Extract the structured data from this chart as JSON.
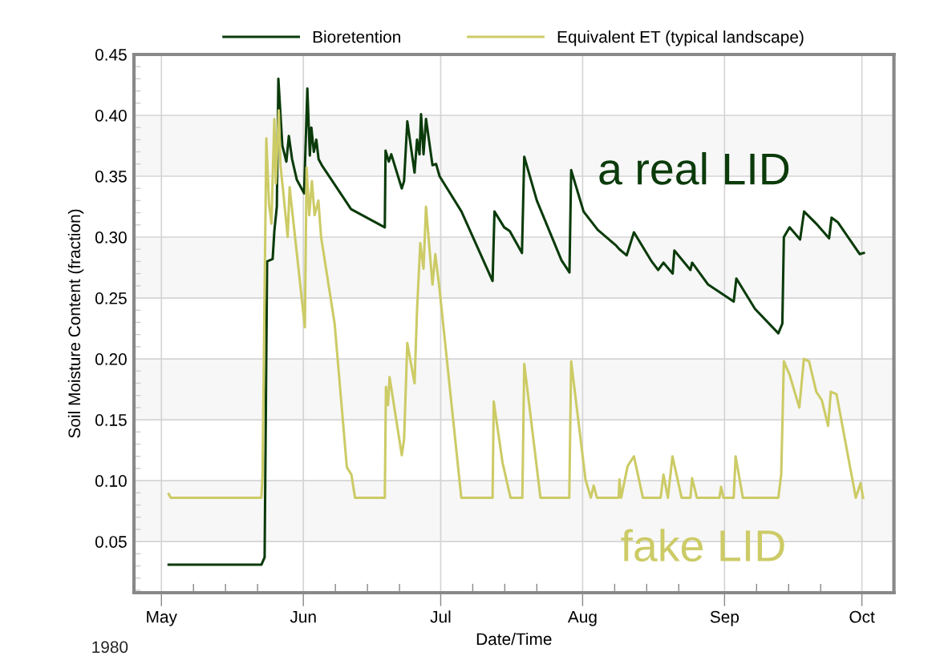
{
  "chart_data": {
    "type": "line",
    "xlabel": "Date/Time",
    "ylabel": "Soil Moisture Content (fraction)",
    "annotations": [
      "a real LID",
      "fake LID",
      "1980"
    ],
    "legend": "top",
    "grid": true,
    "line_style": "solid",
    "marker": "none",
    "xlim": [
      "1980-04-25",
      "1980-10-08"
    ],
    "ylim": [
      0.008,
      0.45
    ],
    "xticks": [
      {
        "value": "1980-05-01",
        "label": "May"
      },
      {
        "value": "1980-05-08",
        "label": null
      },
      {
        "value": "1980-05-15",
        "label": null
      },
      {
        "value": "1980-05-22",
        "label": null
      },
      {
        "value": "1980-06-01",
        "label": "Jun"
      },
      {
        "value": "1980-06-08",
        "label": null
      },
      {
        "value": "1980-06-15",
        "label": null
      },
      {
        "value": "1980-06-22",
        "label": null
      },
      {
        "value": "1980-07-01",
        "label": "Jul"
      },
      {
        "value": "1980-07-08",
        "label": null
      },
      {
        "value": "1980-07-15",
        "label": null
      },
      {
        "value": "1980-07-22",
        "label": null
      },
      {
        "value": "1980-08-01",
        "label": "Aug"
      },
      {
        "value": "1980-08-08",
        "label": null
      },
      {
        "value": "1980-08-15",
        "label": null
      },
      {
        "value": "1980-08-22",
        "label": null
      },
      {
        "value": "1980-09-01",
        "label": "Sep"
      },
      {
        "value": "1980-09-08",
        "label": null
      },
      {
        "value": "1980-09-15",
        "label": null
      },
      {
        "value": "1980-09-22",
        "label": null
      },
      {
        "value": "1980-10-01",
        "label": "Oct"
      }
    ],
    "yticks": [
      {
        "value": 0.01,
        "label": null
      },
      {
        "value": 0.02,
        "label": null
      },
      {
        "value": 0.03,
        "label": null
      },
      {
        "value": 0.04,
        "label": null
      },
      {
        "value": 0.05,
        "label": "0.05"
      },
      {
        "value": 0.06,
        "label": null
      },
      {
        "value": 0.07,
        "label": null
      },
      {
        "value": 0.08,
        "label": null
      },
      {
        "value": 0.09,
        "label": null
      },
      {
        "value": 0.1,
        "label": "0.10"
      },
      {
        "value": 0.11,
        "label": null
      },
      {
        "value": 0.12,
        "label": null
      },
      {
        "value": 0.13,
        "label": null
      },
      {
        "value": 0.14,
        "label": null
      },
      {
        "value": 0.15,
        "label": "0.15"
      },
      {
        "value": 0.16,
        "label": null
      },
      {
        "value": 0.17,
        "label": null
      },
      {
        "value": 0.18,
        "label": null
      },
      {
        "value": 0.19,
        "label": null
      },
      {
        "value": 0.2,
        "label": "0.20"
      },
      {
        "value": 0.21,
        "label": null
      },
      {
        "value": 0.22,
        "label": null
      },
      {
        "value": 0.23,
        "label": null
      },
      {
        "value": 0.24,
        "label": null
      },
      {
        "value": 0.25,
        "label": "0.25"
      },
      {
        "value": 0.26,
        "label": null
      },
      {
        "value": 0.27,
        "label": null
      },
      {
        "value": 0.28,
        "label": null
      },
      {
        "value": 0.29,
        "label": null
      },
      {
        "value": 0.3,
        "label": "0.30"
      },
      {
        "value": 0.31,
        "label": null
      },
      {
        "value": 0.32,
        "label": null
      },
      {
        "value": 0.33,
        "label": null
      },
      {
        "value": 0.34,
        "label": null
      },
      {
        "value": 0.35,
        "label": "0.35"
      },
      {
        "value": 0.36,
        "label": null
      },
      {
        "value": 0.37,
        "label": null
      },
      {
        "value": 0.38,
        "label": null
      },
      {
        "value": 0.39,
        "label": null
      },
      {
        "value": 0.4,
        "label": "0.40"
      },
      {
        "value": 0.41,
        "label": null
      },
      {
        "value": 0.42,
        "label": null
      },
      {
        "value": 0.43,
        "label": null
      },
      {
        "value": 0.44,
        "label": null
      },
      {
        "value": 0.45,
        "label": "0.45"
      }
    ],
    "bands": [
      {
        "axis": "y",
        "from": 0.05,
        "to": 0.1,
        "label": null,
        "color": "#f7f7f7"
      },
      {
        "axis": "y",
        "from": 0.15,
        "to": 0.2,
        "label": null,
        "color": "#f7f7f7"
      },
      {
        "axis": "y",
        "from": 0.25,
        "to": 0.3,
        "label": null,
        "color": "#f7f7f7"
      },
      {
        "axis": "y",
        "from": 0.35,
        "to": 0.4,
        "label": null,
        "color": "#f7f7f7"
      }
    ],
    "series": [
      {
        "name": "Bioretention",
        "color": "#0b3b0b",
        "x": [
          "1980-05-02T14:00",
          "1980-05-22T20:00",
          "1980-05-23T13:00",
          "1980-05-24T02:00",
          "1980-05-25T07:00",
          "1980-05-25T16:00",
          "1980-05-26T05:00",
          "1980-05-26T13:00",
          "1980-05-27T10:00",
          "1980-05-28T07:00",
          "1980-05-28T20:00",
          "1980-05-29T13:00",
          "1980-05-30T14:00",
          "1980-06-01T04:00",
          "1980-06-01T21:00",
          "1980-06-02T10:00",
          "1980-06-02T18:00",
          "1980-06-03T07:00",
          "1980-06-03T20:00",
          "1980-06-04T08:00",
          "1980-06-05T01:00",
          "1980-06-11T10:00",
          "1980-06-18T19:00",
          "1980-06-18T23:00",
          "1980-06-19T16:00",
          "1980-06-20T05:00",
          "1980-06-22T12:00",
          "1980-06-23T00:00",
          "1980-06-23T17:00",
          "1980-06-25T07:00",
          "1980-06-25T20:00",
          "1980-06-26T09:00",
          "1980-06-26T17:00",
          "1980-06-27T06:00",
          "1980-06-27T19:00",
          "1980-06-29T05:00",
          "1980-06-30T00:00",
          "1980-06-30T18:00",
          "1980-07-05T13:00",
          "1980-07-12T08:00",
          "1980-07-12T18:00",
          "1980-07-14T21:00",
          "1980-07-16T02:00",
          "1980-07-18T18:00",
          "1980-07-19T06:00",
          "1980-07-22T00:00",
          "1980-07-27T09:00",
          "1980-07-29T03:00",
          "1980-07-29T12:00",
          "1980-08-01T05:00",
          "1980-08-04T07:00",
          "1980-08-08T08:00",
          "1980-08-09T01:00",
          "1980-08-10T15:00",
          "1980-08-12T05:00",
          "1980-08-16T02:00",
          "1980-08-17T12:00",
          "1980-08-18T16:00",
          "1980-08-20T16:00",
          "1980-08-21T01:00",
          "1980-08-24T13:00",
          "1980-08-24T22:00",
          "1980-08-28T10:00",
          "1980-08-31T06:00",
          "1980-09-03T00:00",
          "1980-09-03T14:00",
          "1980-09-07T16:00",
          "1980-09-12T18:00",
          "1980-09-13T15:00",
          "1980-09-13T23:00",
          "1980-09-15T05:00",
          "1980-09-17T12:00",
          "1980-09-18T09:00",
          "1980-09-21T01:00",
          "1980-09-23T20:00",
          "1980-09-24T09:00",
          "1980-09-25T19:00",
          "1980-09-30T13:00",
          "1980-10-01T10:00"
        ],
        "values": [
          0.031,
          0.031,
          0.037,
          0.28,
          0.282,
          0.305,
          0.325,
          0.43,
          0.375,
          0.362,
          0.383,
          0.364,
          0.347,
          0.336,
          0.422,
          0.367,
          0.39,
          0.37,
          0.38,
          0.364,
          0.359,
          0.323,
          0.308,
          0.371,
          0.362,
          0.368,
          0.34,
          0.346,
          0.395,
          0.353,
          0.38,
          0.368,
          0.401,
          0.368,
          0.397,
          0.359,
          0.36,
          0.35,
          0.321,
          0.264,
          0.321,
          0.308,
          0.305,
          0.287,
          0.366,
          0.33,
          0.281,
          0.271,
          0.355,
          0.321,
          0.306,
          0.293,
          0.29,
          0.285,
          0.304,
          0.28,
          0.273,
          0.279,
          0.27,
          0.289,
          0.273,
          0.279,
          0.261,
          0.254,
          0.247,
          0.266,
          0.241,
          0.221,
          0.229,
          0.3,
          0.308,
          0.298,
          0.321,
          0.311,
          0.299,
          0.316,
          0.312,
          0.286,
          0.287
        ]
      },
      {
        "name": "Equivalent ET (typical landscape)",
        "color": "#cccb66",
        "x": [
          "1980-05-02T14:00",
          "1980-05-03T01:00",
          "1980-05-22T20:00",
          "1980-05-23T02:00",
          "1980-05-23T22:00",
          "1980-05-24T12:00",
          "1980-05-25T01:00",
          "1980-05-25T05:00",
          "1980-05-25T16:00",
          "1980-05-26T00:00",
          "1980-05-26T15:00",
          "1980-05-27T00:00",
          "1980-05-27T14:00",
          "1980-05-28T14:00",
          "1980-05-29T00:00",
          "1980-06-01T08:00",
          "1980-06-01T17:00",
          "1980-06-02T07:00",
          "1980-06-02T21:00",
          "1980-06-03T11:00",
          "1980-06-04T07:00",
          "1980-06-04T21:00",
          "1980-06-07T20:00",
          "1980-06-10T12:00",
          "1980-06-11T12:00",
          "1980-06-12T07:00",
          "1980-06-18T19:00",
          "1980-06-19T01:00",
          "1980-06-19T12:00",
          "1980-06-19T20:00",
          "1980-06-22T12:00",
          "1980-06-23T00:00",
          "1980-06-23T17:00",
          "1980-06-25T07:00",
          "1980-06-25T20:00",
          "1980-06-26T13:00",
          "1980-06-27T06:00",
          "1980-06-27T19:00",
          "1980-06-29T05:00",
          "1980-06-29T20:00",
          "1980-06-30T18:00",
          "1980-07-05T12:00",
          "1980-07-12T08:00",
          "1980-07-12T14:00",
          "1980-07-14T12:00",
          "1980-07-16T06:00",
          "1980-07-18T20:00",
          "1980-07-19T06:00",
          "1980-07-22T19:00",
          "1980-07-29T02:00",
          "1980-07-29T12:00",
          "1980-08-01T15:00",
          "1980-08-02T19:00",
          "1980-08-03T10:00",
          "1980-08-04T03:00",
          "1980-08-08T21:00",
          "1980-08-09T01:00",
          "1980-08-09T10:00",
          "1980-08-10T20:00",
          "1980-08-12T05:00",
          "1980-08-14T04:00",
          "1980-08-18T01:00",
          "1980-08-18T16:00",
          "1980-08-19T15:00",
          "1980-08-20T15:00",
          "1980-08-22T15:00",
          "1980-08-24T13:00",
          "1980-08-24T22:00",
          "1980-08-25T23:00",
          "1980-08-30T21:00",
          "1980-08-31T06:00",
          "1980-08-31T18:00",
          "1980-09-03T00:00",
          "1980-09-03T10:00",
          "1980-09-05T00:00",
          "1980-09-12T18:00",
          "1980-09-13T09:00",
          "1980-09-13T23:00",
          "1980-09-15T05:00",
          "1980-09-17T08:00",
          "1980-09-18T08:00",
          "1980-09-19T11:00",
          "1980-09-21T01:00",
          "1980-09-22T06:00",
          "1980-09-23T15:00",
          "1980-09-24T05:00",
          "1980-09-25T11:00",
          "1980-09-29T16:00",
          "1980-09-30T17:00",
          "1980-10-01T06:00"
        ],
        "values": [
          0.089,
          0.086,
          0.086,
          0.104,
          0.381,
          0.327,
          0.311,
          0.336,
          0.397,
          0.344,
          0.404,
          0.359,
          0.338,
          0.3,
          0.341,
          0.226,
          0.357,
          0.318,
          0.346,
          0.318,
          0.33,
          0.3,
          0.229,
          0.111,
          0.105,
          0.086,
          0.086,
          0.177,
          0.162,
          0.185,
          0.121,
          0.134,
          0.213,
          0.18,
          0.24,
          0.295,
          0.274,
          0.325,
          0.261,
          0.286,
          0.257,
          0.086,
          0.086,
          0.165,
          0.115,
          0.086,
          0.086,
          0.196,
          0.086,
          0.086,
          0.198,
          0.101,
          0.086,
          0.096,
          0.086,
          0.086,
          0.101,
          0.086,
          0.112,
          0.12,
          0.086,
          0.086,
          0.105,
          0.086,
          0.12,
          0.086,
          0.086,
          0.102,
          0.086,
          0.086,
          0.095,
          0.086,
          0.086,
          0.12,
          0.086,
          0.086,
          0.105,
          0.198,
          0.187,
          0.16,
          0.2,
          0.198,
          0.173,
          0.166,
          0.145,
          0.173,
          0.171,
          0.086,
          0.098,
          0.086
        ]
      }
    ]
  }
}
